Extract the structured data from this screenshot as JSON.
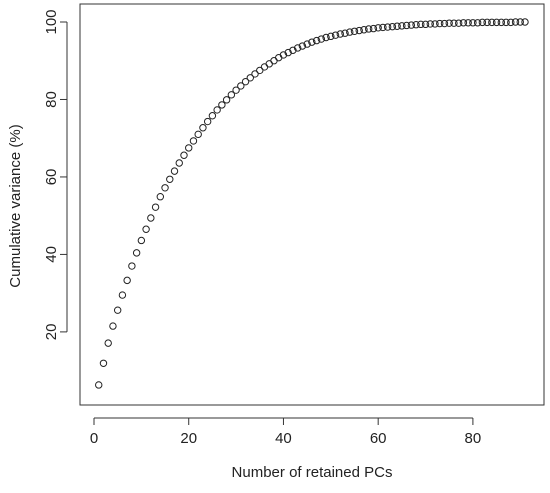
{
  "chart_data": {
    "type": "scatter",
    "title": "",
    "xlabel": "Number of retained PCs",
    "ylabel": "Cumulative variance (%)",
    "xlim": [
      0,
      91
    ],
    "ylim": [
      5,
      100
    ],
    "xticks": [
      0,
      20,
      40,
      60,
      80
    ],
    "yticks": [
      20,
      40,
      60,
      80,
      100
    ],
    "grid": false,
    "legend": "none",
    "marker": "open-circle",
    "point_color": "#222222",
    "x": [
      1,
      2,
      3,
      4,
      5,
      6,
      7,
      8,
      9,
      10,
      11,
      12,
      13,
      14,
      15,
      16,
      17,
      18,
      19,
      20,
      21,
      22,
      23,
      24,
      25,
      26,
      27,
      28,
      29,
      30,
      31,
      32,
      33,
      34,
      35,
      36,
      37,
      38,
      39,
      40,
      41,
      42,
      43,
      44,
      45,
      46,
      47,
      48,
      49,
      50,
      51,
      52,
      53,
      54,
      55,
      56,
      57,
      58,
      59,
      60,
      61,
      62,
      63,
      64,
      65,
      66,
      67,
      68,
      69,
      70,
      71,
      72,
      73,
      74,
      75,
      76,
      77,
      78,
      79,
      80,
      81,
      82,
      83,
      84,
      85,
      86,
      87,
      88,
      89,
      90,
      91
    ],
    "y": [
      6.3,
      11.9,
      17.1,
      21.5,
      25.6,
      29.5,
      33.3,
      37.0,
      40.4,
      43.6,
      46.5,
      49.4,
      52.2,
      54.9,
      57.2,
      59.4,
      61.5,
      63.6,
      65.6,
      67.5,
      69.3,
      71.0,
      72.7,
      74.3,
      75.8,
      77.3,
      78.6,
      79.9,
      81.2,
      82.4,
      83.5,
      84.6,
      85.6,
      86.6,
      87.5,
      88.4,
      89.2,
      90.0,
      90.8,
      91.5,
      92.1,
      92.7,
      93.3,
      93.8,
      94.3,
      94.8,
      95.2,
      95.6,
      96.0,
      96.3,
      96.6,
      96.9,
      97.1,
      97.4,
      97.6,
      97.8,
      98.0,
      98.2,
      98.3,
      98.5,
      98.6,
      98.7,
      98.8,
      98.9,
      99.0,
      99.1,
      99.2,
      99.3,
      99.4,
      99.4,
      99.5,
      99.5,
      99.6,
      99.6,
      99.7,
      99.7,
      99.7,
      99.8,
      99.8,
      99.8,
      99.8,
      99.9,
      99.9,
      99.9,
      99.9,
      99.9,
      99.9,
      99.9,
      100.0,
      100.0,
      100.0
    ]
  }
}
